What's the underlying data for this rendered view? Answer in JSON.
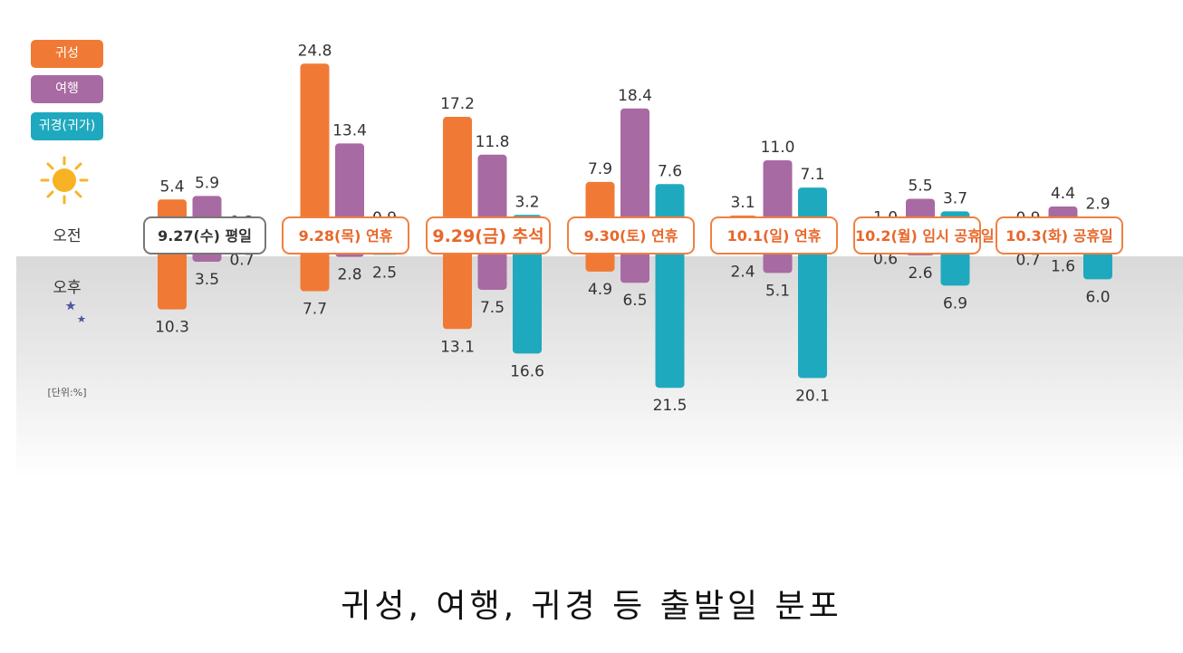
{
  "caption": "귀성, 여행, 귀경 등 출발일 분포",
  "legend": [
    {
      "label": "귀성",
      "color": "#f07a35"
    },
    {
      "label": "여행",
      "color": "#a86aa2"
    },
    {
      "label": "귀경(귀가)",
      "color": "#1fa9be"
    }
  ],
  "am_label": "오전",
  "pm_label": "오후",
  "unit_label": "[단위:%]",
  "icons": {
    "am": "sun-icon",
    "pm": "moon-icon"
  },
  "chart_data": {
    "type": "bar",
    "categories": [
      "9.27(수) 평일",
      "9.28(목) 연휴",
      "9.29(금) 추석",
      "9.30(토) 연휴",
      "10.1(일) 연휴",
      "10.2(월) 임시 공휴일",
      "10.3(화) 공휴일"
    ],
    "series": [
      {
        "name": "귀성",
        "am": [
          5.4,
          24.8,
          17.2,
          7.9,
          3.1,
          1.0,
          0.9
        ],
        "pm": [
          10.3,
          7.7,
          13.1,
          4.9,
          2.4,
          0.6,
          0.7
        ]
      },
      {
        "name": "여행",
        "am": [
          5.9,
          13.4,
          11.8,
          18.4,
          11.0,
          5.5,
          4.4
        ],
        "pm": [
          3.5,
          2.8,
          7.5,
          6.5,
          5.1,
          2.6,
          1.6
        ]
      },
      {
        "name": "귀경(귀가)",
        "am": [
          0.3,
          0.9,
          3.2,
          7.6,
          7.1,
          3.7,
          2.9
        ],
        "pm": [
          0.7,
          2.5,
          16.6,
          21.5,
          20.1,
          6.9,
          6.0
        ]
      }
    ],
    "unit": "%",
    "am_pm": [
      "오전",
      "오후"
    ]
  }
}
